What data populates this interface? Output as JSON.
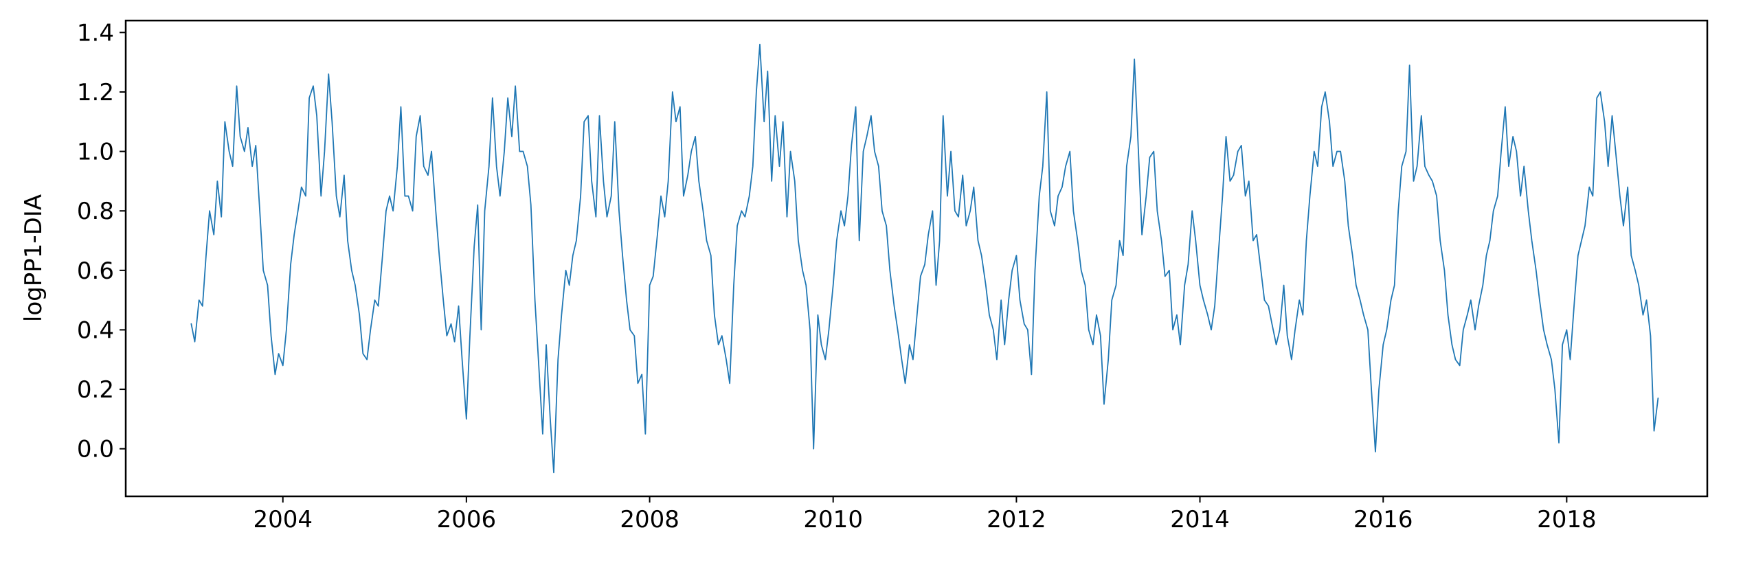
{
  "chart_data": {
    "type": "line",
    "title": "",
    "xlabel": "",
    "ylabel": "logPP1-DIA",
    "xlim": [
      "2002-04-15",
      "2019-07-15"
    ],
    "ylim": [
      -0.16,
      1.44
    ],
    "x_ticks": [
      {
        "value": "2004-01-01",
        "label": "2004"
      },
      {
        "value": "2006-01-01",
        "label": "2006"
      },
      {
        "value": "2008-01-01",
        "label": "2008"
      },
      {
        "value": "2010-01-01",
        "label": "2010"
      },
      {
        "value": "2012-01-01",
        "label": "2012"
      },
      {
        "value": "2014-01-01",
        "label": "2014"
      },
      {
        "value": "2016-01-01",
        "label": "2016"
      },
      {
        "value": "2018-01-01",
        "label": "2018"
      }
    ],
    "y_ticks": [
      {
        "value": 0.0,
        "label": "0.0"
      },
      {
        "value": 0.2,
        "label": "0.2"
      },
      {
        "value": 0.4,
        "label": "0.4"
      },
      {
        "value": 0.6,
        "label": "0.6"
      },
      {
        "value": 0.8,
        "label": "0.8"
      },
      {
        "value": 1.0,
        "label": "1.0"
      },
      {
        "value": 1.2,
        "label": "1.2"
      },
      {
        "value": 1.4,
        "label": "1.4"
      }
    ],
    "grid": false,
    "line_color": "#1f77b4",
    "series": [
      {
        "x": [
          "2003-01-01",
          "2003-01-15",
          "2003-02-01",
          "2003-02-15",
          "2003-03-01",
          "2003-03-15",
          "2003-04-01",
          "2003-04-15",
          "2003-05-01",
          "2003-05-15",
          "2003-06-01",
          "2003-06-15",
          "2003-07-01",
          "2003-07-15",
          "2003-08-01",
          "2003-08-15",
          "2003-09-01",
          "2003-09-15",
          "2003-10-01",
          "2003-10-15",
          "2003-11-01",
          "2003-11-15",
          "2003-12-01",
          "2003-12-15",
          "2004-01-01",
          "2004-01-15",
          "2004-02-01",
          "2004-02-15",
          "2004-03-01",
          "2004-03-15",
          "2004-04-01",
          "2004-04-15",
          "2004-05-01",
          "2004-05-15",
          "2004-06-01",
          "2004-06-15",
          "2004-07-01",
          "2004-07-15",
          "2004-08-01",
          "2004-08-15",
          "2004-09-01",
          "2004-09-15",
          "2004-10-01",
          "2004-10-15",
          "2004-11-01",
          "2004-11-15",
          "2004-12-01",
          "2004-12-15",
          "2005-01-01",
          "2005-01-15",
          "2005-02-01",
          "2005-02-15",
          "2005-03-01",
          "2005-03-15",
          "2005-04-01",
          "2005-04-15",
          "2005-05-01",
          "2005-05-15",
          "2005-06-01",
          "2005-06-15",
          "2005-07-01",
          "2005-07-15",
          "2005-08-01",
          "2005-08-15",
          "2005-09-01",
          "2005-09-15",
          "2005-10-01",
          "2005-10-15",
          "2005-11-01",
          "2005-11-15",
          "2005-12-01",
          "2005-12-15",
          "2006-01-01",
          "2006-01-15",
          "2006-02-01",
          "2006-02-15",
          "2006-03-01",
          "2006-03-15",
          "2006-04-01",
          "2006-04-15",
          "2006-05-01",
          "2006-05-15",
          "2006-06-01",
          "2006-06-15",
          "2006-07-01",
          "2006-07-15",
          "2006-08-01",
          "2006-08-15",
          "2006-09-01",
          "2006-09-15",
          "2006-10-01",
          "2006-10-15",
          "2006-11-01",
          "2006-11-15",
          "2006-12-01",
          "2006-12-15",
          "2007-01-01",
          "2007-01-15",
          "2007-02-01",
          "2007-02-15",
          "2007-03-01",
          "2007-03-15",
          "2007-04-01",
          "2007-04-15",
          "2007-05-01",
          "2007-05-15",
          "2007-06-01",
          "2007-06-15",
          "2007-07-01",
          "2007-07-15",
          "2007-08-01",
          "2007-08-15",
          "2007-09-01",
          "2007-09-15",
          "2007-10-01",
          "2007-10-15",
          "2007-11-01",
          "2007-11-15",
          "2007-12-01",
          "2007-12-15",
          "2008-01-01",
          "2008-01-15",
          "2008-02-01",
          "2008-02-15",
          "2008-03-01",
          "2008-03-15",
          "2008-04-01",
          "2008-04-15",
          "2008-05-01",
          "2008-05-15",
          "2008-06-01",
          "2008-06-15",
          "2008-07-01",
          "2008-07-15",
          "2008-08-01",
          "2008-08-15",
          "2008-09-01",
          "2008-09-15",
          "2008-10-01",
          "2008-10-15",
          "2008-11-01",
          "2008-11-15",
          "2008-12-01",
          "2008-12-15",
          "2009-01-01",
          "2009-01-15",
          "2009-02-01",
          "2009-02-15",
          "2009-03-01",
          "2009-03-15",
          "2009-04-01",
          "2009-04-15",
          "2009-05-01",
          "2009-05-15",
          "2009-06-01",
          "2009-06-15",
          "2009-07-01",
          "2009-07-15",
          "2009-08-01",
          "2009-08-15",
          "2009-09-01",
          "2009-09-15",
          "2009-10-01",
          "2009-10-15",
          "2009-11-01",
          "2009-11-15",
          "2009-12-01",
          "2009-12-15",
          "2010-01-01",
          "2010-01-15",
          "2010-02-01",
          "2010-02-15",
          "2010-03-01",
          "2010-03-15",
          "2010-04-01",
          "2010-04-15",
          "2010-05-01",
          "2010-05-15",
          "2010-06-01",
          "2010-06-15",
          "2010-07-01",
          "2010-07-15",
          "2010-08-01",
          "2010-08-15",
          "2010-09-01",
          "2010-09-15",
          "2010-10-01",
          "2010-10-15",
          "2010-11-01",
          "2010-11-15",
          "2010-12-01",
          "2010-12-15",
          "2011-01-01",
          "2011-01-15",
          "2011-02-01",
          "2011-02-15",
          "2011-03-01",
          "2011-03-15",
          "2011-04-01",
          "2011-04-15",
          "2011-05-01",
          "2011-05-15",
          "2011-06-01",
          "2011-06-15",
          "2011-07-01",
          "2011-07-15",
          "2011-08-01",
          "2011-08-15",
          "2011-09-01",
          "2011-09-15",
          "2011-10-01",
          "2011-10-15",
          "2011-11-01",
          "2011-11-15",
          "2011-12-01",
          "2011-12-15",
          "2012-01-01",
          "2012-01-15",
          "2012-02-01",
          "2012-02-15",
          "2012-03-01",
          "2012-03-15",
          "2012-04-01",
          "2012-04-15",
          "2012-05-01",
          "2012-05-15",
          "2012-06-01",
          "2012-06-15",
          "2012-07-01",
          "2012-07-15",
          "2012-08-01",
          "2012-08-15",
          "2012-09-01",
          "2012-09-15",
          "2012-10-01",
          "2012-10-15",
          "2012-11-01",
          "2012-11-15",
          "2012-12-01",
          "2012-12-15",
          "2013-01-01",
          "2013-01-15",
          "2013-02-01",
          "2013-02-15",
          "2013-03-01",
          "2013-03-15",
          "2013-04-01",
          "2013-04-15",
          "2013-05-01",
          "2013-05-15",
          "2013-06-01",
          "2013-06-15",
          "2013-07-01",
          "2013-07-15",
          "2013-08-01",
          "2013-08-15",
          "2013-09-01",
          "2013-09-15",
          "2013-10-01",
          "2013-10-15",
          "2013-11-01",
          "2013-11-15",
          "2013-12-01",
          "2013-12-15",
          "2014-01-01",
          "2014-01-15",
          "2014-02-01",
          "2014-02-15",
          "2014-03-01",
          "2014-03-15",
          "2014-04-01",
          "2014-04-15",
          "2014-05-01",
          "2014-05-15",
          "2014-06-01",
          "2014-06-15",
          "2014-07-01",
          "2014-07-15",
          "2014-08-01",
          "2014-08-15",
          "2014-09-01",
          "2014-09-15",
          "2014-10-01",
          "2014-10-15",
          "2014-11-01",
          "2014-11-15",
          "2014-12-01",
          "2014-12-15",
          "2015-01-01",
          "2015-01-15",
          "2015-02-01",
          "2015-02-15",
          "2015-03-01",
          "2015-03-15",
          "2015-04-01",
          "2015-04-15",
          "2015-05-01",
          "2015-05-15",
          "2015-06-01",
          "2015-06-15",
          "2015-07-01",
          "2015-07-15",
          "2015-08-01",
          "2015-08-15",
          "2015-09-01",
          "2015-09-15",
          "2015-10-01",
          "2015-10-15",
          "2015-11-01",
          "2015-11-15",
          "2015-12-01",
          "2015-12-15",
          "2016-01-01",
          "2016-01-15",
          "2016-02-01",
          "2016-02-15",
          "2016-03-01",
          "2016-03-15",
          "2016-04-01",
          "2016-04-15",
          "2016-05-01",
          "2016-05-15",
          "2016-06-01",
          "2016-06-15",
          "2016-07-01",
          "2016-07-15",
          "2016-08-01",
          "2016-08-15",
          "2016-09-01",
          "2016-09-15",
          "2016-10-01",
          "2016-10-15",
          "2016-11-01",
          "2016-11-15",
          "2016-12-01",
          "2016-12-15",
          "2017-01-01",
          "2017-01-15",
          "2017-02-01",
          "2017-02-15",
          "2017-03-01",
          "2017-03-15",
          "2017-04-01",
          "2017-04-15",
          "2017-05-01",
          "2017-05-15",
          "2017-06-01",
          "2017-06-15",
          "2017-07-01",
          "2017-07-15",
          "2017-08-01",
          "2017-08-15",
          "2017-09-01",
          "2017-09-15",
          "2017-10-01",
          "2017-10-15",
          "2017-11-01",
          "2017-11-15",
          "2017-12-01",
          "2017-12-15",
          "2018-01-01",
          "2018-01-15",
          "2018-02-01",
          "2018-02-15",
          "2018-03-01",
          "2018-03-15",
          "2018-04-01",
          "2018-04-15",
          "2018-05-01",
          "2018-05-15",
          "2018-06-01",
          "2018-06-15",
          "2018-07-01",
          "2018-07-15",
          "2018-08-01",
          "2018-08-15",
          "2018-09-01",
          "2018-09-15",
          "2018-10-01",
          "2018-10-15",
          "2018-11-01",
          "2018-11-15",
          "2018-12-01",
          "2018-12-15",
          "2018-12-31"
        ],
        "y": [
          0.42,
          0.36,
          0.5,
          0.48,
          0.65,
          0.8,
          0.72,
          0.9,
          0.78,
          1.1,
          1.0,
          0.95,
          1.22,
          1.05,
          1.0,
          1.08,
          0.95,
          1.02,
          0.8,
          0.6,
          0.55,
          0.38,
          0.25,
          0.32,
          0.28,
          0.4,
          0.62,
          0.72,
          0.8,
          0.88,
          0.85,
          1.18,
          1.22,
          1.12,
          0.85,
          1.0,
          1.26,
          1.1,
          0.85,
          0.78,
          0.92,
          0.7,
          0.6,
          0.55,
          0.45,
          0.32,
          0.3,
          0.4,
          0.5,
          0.48,
          0.65,
          0.8,
          0.85,
          0.8,
          0.95,
          1.15,
          0.85,
          0.85,
          0.8,
          1.05,
          1.12,
          0.95,
          0.92,
          1.0,
          0.8,
          0.65,
          0.5,
          0.38,
          0.42,
          0.36,
          0.48,
          0.3,
          0.1,
          0.38,
          0.68,
          0.82,
          0.4,
          0.8,
          0.95,
          1.18,
          0.95,
          0.85,
          1.0,
          1.18,
          1.05,
          1.22,
          1.0,
          1.0,
          0.95,
          0.82,
          0.5,
          0.3,
          0.05,
          0.35,
          0.1,
          -0.08,
          0.3,
          0.45,
          0.6,
          0.55,
          0.65,
          0.7,
          0.85,
          1.1,
          1.12,
          0.9,
          0.78,
          1.12,
          0.9,
          0.78,
          0.85,
          1.1,
          0.8,
          0.65,
          0.5,
          0.4,
          0.38,
          0.22,
          0.25,
          0.05,
          0.55,
          0.58,
          0.72,
          0.85,
          0.78,
          0.9,
          1.2,
          1.1,
          1.15,
          0.85,
          0.92,
          1.0,
          1.05,
          0.9,
          0.8,
          0.7,
          0.65,
          0.45,
          0.35,
          0.38,
          0.3,
          0.22,
          0.55,
          0.75,
          0.8,
          0.78,
          0.85,
          0.95,
          1.2,
          1.36,
          1.1,
          1.27,
          0.9,
          1.12,
          0.95,
          1.1,
          0.78,
          1.0,
          0.9,
          0.7,
          0.6,
          0.55,
          0.4,
          0.0,
          0.45,
          0.35,
          0.3,
          0.4,
          0.55,
          0.7,
          0.8,
          0.75,
          0.85,
          1.02,
          1.15,
          0.7,
          1.0,
          1.05,
          1.12,
          1.0,
          0.95,
          0.8,
          0.75,
          0.6,
          0.48,
          0.4,
          0.3,
          0.22,
          0.35,
          0.3,
          0.45,
          0.58,
          0.62,
          0.72,
          0.8,
          0.55,
          0.7,
          1.12,
          0.85,
          1.0,
          0.8,
          0.78,
          0.92,
          0.75,
          0.8,
          0.88,
          0.7,
          0.65,
          0.55,
          0.45,
          0.4,
          0.3,
          0.5,
          0.35,
          0.5,
          0.6,
          0.65,
          0.5,
          0.42,
          0.4,
          0.25,
          0.6,
          0.85,
          0.95,
          1.2,
          0.8,
          0.75,
          0.85,
          0.88,
          0.95,
          1.0,
          0.8,
          0.7,
          0.6,
          0.55,
          0.4,
          0.35,
          0.45,
          0.38,
          0.15,
          0.3,
          0.5,
          0.55,
          0.7,
          0.65,
          0.95,
          1.05,
          1.31,
          1.0,
          0.72,
          0.85,
          0.98,
          1.0,
          0.8,
          0.7,
          0.58,
          0.6,
          0.4,
          0.45,
          0.35,
          0.55,
          0.62,
          0.8,
          0.7,
          0.55,
          0.5,
          0.45,
          0.4,
          0.48,
          0.65,
          0.85,
          1.05,
          0.9,
          0.92,
          1.0,
          1.02,
          0.85,
          0.9,
          0.7,
          0.72,
          0.6,
          0.5,
          0.48,
          0.42,
          0.35,
          0.4,
          0.55,
          0.38,
          0.3,
          0.4,
          0.5,
          0.45,
          0.7,
          0.85,
          1.0,
          0.95,
          1.15,
          1.2,
          1.1,
          0.95,
          1.0,
          1.0,
          0.9,
          0.75,
          0.65,
          0.55,
          0.5,
          0.45,
          0.4,
          0.2,
          -0.01,
          0.2,
          0.35,
          0.4,
          0.5,
          0.55,
          0.8,
          0.95,
          1.0,
          1.29,
          0.9,
          0.95,
          1.12,
          0.95,
          0.92,
          0.9,
          0.85,
          0.7,
          0.6,
          0.45,
          0.35,
          0.3,
          0.28,
          0.4,
          0.45,
          0.5,
          0.4,
          0.48,
          0.55,
          0.65,
          0.7,
          0.8,
          0.85,
          1.0,
          1.15,
          0.95,
          1.05,
          1.0,
          0.85,
          0.95,
          0.8,
          0.7,
          0.6,
          0.5,
          0.4,
          0.35,
          0.3,
          0.2,
          0.02,
          0.35,
          0.4,
          0.3,
          0.5,
          0.65,
          0.7,
          0.75,
          0.88,
          0.85,
          1.18,
          1.2,
          1.1,
          0.95,
          1.12,
          1.0,
          0.85,
          0.75,
          0.88,
          0.65,
          0.6,
          0.55,
          0.45,
          0.5,
          0.38,
          0.06,
          0.17
        ]
      }
    ]
  }
}
